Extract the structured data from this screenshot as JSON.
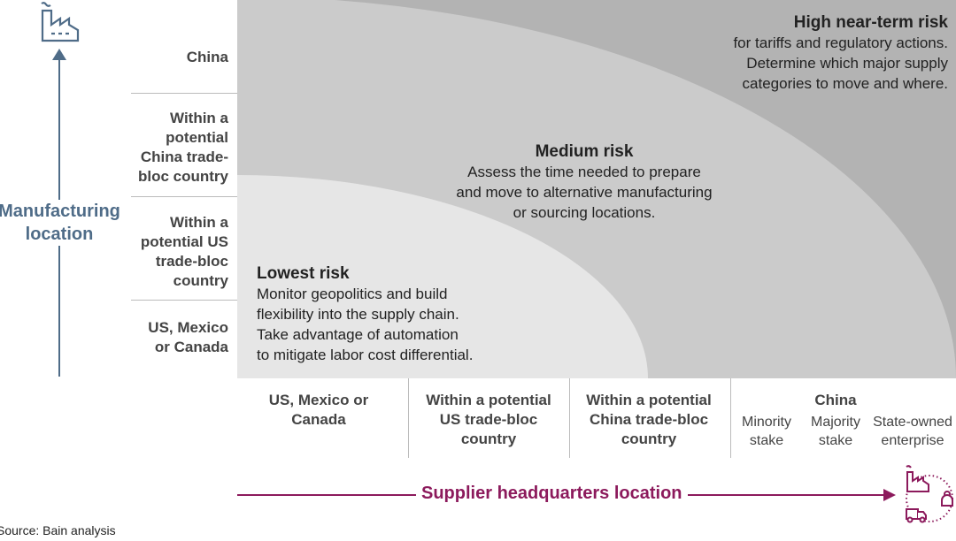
{
  "colors": {
    "outer_region": "#b3b3b3",
    "middle_region": "#cbcbcb",
    "inner_region": "#e6e6e6",
    "manufacturing_axis": "#4f6c88",
    "supplier_axis": "#8c1a5c"
  },
  "y_axis": {
    "label": "Manufacturing location",
    "icon": "factory-icon",
    "rows": [
      "China",
      "Within a potential China trade-bloc country",
      "Within a potential US trade-bloc country",
      "US, Mexico or Canada"
    ]
  },
  "x_axis": {
    "label": "Supplier headquarters location",
    "icon": "supply-chain-cycle-icon",
    "columns": [
      "US, Mexico or Canada",
      "Within a potential US trade-bloc country",
      "Within a potential China trade-bloc country",
      "China"
    ],
    "china_sub": [
      "Minority stake",
      "Majority stake",
      "State-owned enterprise"
    ]
  },
  "risks": {
    "high": {
      "title": "High near-term risk",
      "lines": [
        "for tariffs and regulatory actions.",
        "Determine which major supply",
        "categories to move and where."
      ]
    },
    "medium": {
      "title": "Medium risk",
      "lines": [
        "Assess the time needed to prepare",
        "and move to alternative manufacturing",
        "or sourcing locations."
      ]
    },
    "low": {
      "title": "Lowest risk",
      "lines": [
        "Monitor geopolitics and build",
        "flexibility into the supply chain.",
        "Take advantage of automation",
        "to mitigate labor cost differential."
      ]
    }
  },
  "source": "Source: Bain analysis"
}
